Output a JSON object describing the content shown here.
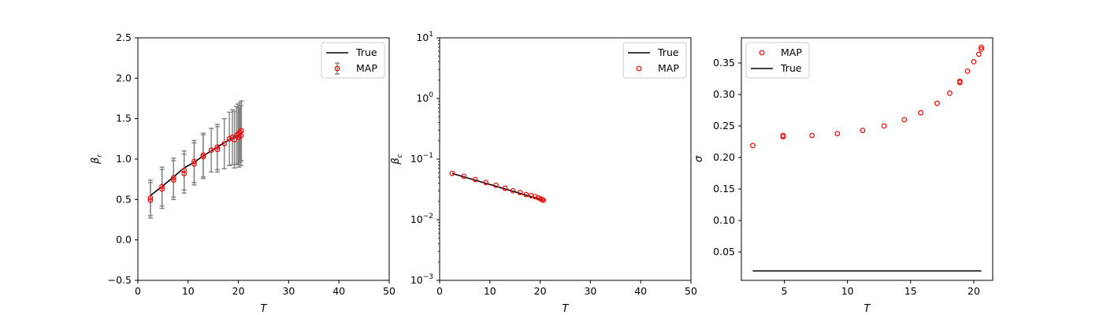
{
  "figure": {
    "background": "#ffffff"
  },
  "colors": {
    "true_line": "#000000",
    "map_marker": "#ff0000",
    "errorbar": "#808080",
    "legend_border": "#cccccc"
  },
  "chart_data": [
    {
      "type": "scatter",
      "name": "panel-beta-r",
      "xlabel": "T",
      "ylabel": "β",
      "ylabel_sub": "r",
      "xlim": [
        0,
        50
      ],
      "ylim": [
        -0.5,
        2.5
      ],
      "yscale": "linear",
      "xticks": [
        0,
        10,
        20,
        30,
        40,
        50
      ],
      "xtick_labels": [
        "0",
        "10",
        "20",
        "30",
        "40",
        "50"
      ],
      "yticks": [
        -0.5,
        0.0,
        0.5,
        1.0,
        1.5,
        2.0,
        2.5
      ],
      "ytick_labels": [
        "−0.5",
        "0.0",
        "0.5",
        "1.0",
        "1.5",
        "2.0",
        "2.5"
      ],
      "legend": {
        "placement": "upper-right",
        "entries": [
          "True",
          "MAP"
        ],
        "kinds": [
          "line",
          "errorbar"
        ]
      },
      "series": [
        {
          "name": "True",
          "kind": "line",
          "x": [
            2.5,
            4.8,
            7.1,
            9.2,
            11.2,
            13.0,
            14.6,
            16.0,
            17.2,
            18.2,
            19.0,
            19.6,
            20.1,
            20.4,
            20.6
          ],
          "y": [
            0.55,
            0.66,
            0.78,
            0.89,
            0.96,
            1.04,
            1.1,
            1.16,
            1.2,
            1.24,
            1.27,
            1.29,
            1.3,
            1.31,
            1.32
          ]
        },
        {
          "name": "MAP",
          "kind": "errorbar",
          "x": [
            2.5,
            2.5,
            4.8,
            4.8,
            7.1,
            7.1,
            9.2,
            9.2,
            11.2,
            11.2,
            13.0,
            13.0,
            14.6,
            15.8,
            15.8,
            17.2,
            18.2,
            18.8,
            19.2,
            19.6,
            19.9,
            20.1,
            20.3,
            20.5,
            20.6
          ],
          "y": [
            0.49,
            0.52,
            0.63,
            0.66,
            0.74,
            0.77,
            0.82,
            0.86,
            0.94,
            0.97,
            1.03,
            1.05,
            1.11,
            1.12,
            1.15,
            1.19,
            1.25,
            1.27,
            1.24,
            1.29,
            1.31,
            1.27,
            1.33,
            1.29,
            1.35
          ],
          "yerr": [
            0.22,
            0.22,
            0.24,
            0.24,
            0.24,
            0.24,
            0.24,
            0.24,
            0.26,
            0.26,
            0.27,
            0.27,
            0.27,
            0.28,
            0.28,
            0.31,
            0.33,
            0.34,
            0.35,
            0.36,
            0.37,
            0.37,
            0.37,
            0.37,
            0.37
          ]
        }
      ]
    },
    {
      "type": "scatter",
      "name": "panel-beta-c",
      "xlabel": "T",
      "ylabel": "β",
      "ylabel_sub": "c",
      "xlim": [
        0,
        50
      ],
      "ylim": [
        0.001,
        10
      ],
      "yscale": "log",
      "xticks": [
        0,
        10,
        20,
        30,
        40,
        50
      ],
      "xtick_labels": [
        "0",
        "10",
        "20",
        "30",
        "40",
        "50"
      ],
      "yticks": [
        0.001,
        0.01,
        0.1,
        1,
        10
      ],
      "ytick_base": "10",
      "ytick_exponents": [
        "−3",
        "−2",
        "−1",
        "0",
        "1"
      ],
      "legend": {
        "placement": "upper-right",
        "entries": [
          "True",
          "MAP"
        ],
        "kinds": [
          "line",
          "marker"
        ]
      },
      "series": [
        {
          "name": "True",
          "kind": "line",
          "x": [
            2.5,
            20.6
          ],
          "y": [
            0.058,
            0.021
          ]
        },
        {
          "name": "MAP",
          "kind": "marker",
          "x": [
            2.5,
            4.8,
            7.1,
            9.2,
            11.2,
            13.0,
            14.6,
            16.0,
            17.2,
            18.2,
            19.0,
            19.6,
            20.1,
            20.4,
            20.6
          ],
          "y": [
            0.058,
            0.052,
            0.046,
            0.041,
            0.037,
            0.033,
            0.03,
            0.028,
            0.026,
            0.025,
            0.024,
            0.023,
            0.022,
            0.0215,
            0.021
          ]
        }
      ]
    },
    {
      "type": "scatter",
      "name": "panel-sigma",
      "xlabel": "T",
      "ylabel": "σ",
      "xlim": [
        1.6,
        21.5
      ],
      "ylim": [
        0.005,
        0.39
      ],
      "yscale": "linear",
      "xticks": [
        5,
        10,
        15,
        20
      ],
      "xtick_labels": [
        "5",
        "10",
        "15",
        "20"
      ],
      "yticks": [
        0.05,
        0.1,
        0.15,
        0.2,
        0.25,
        0.3,
        0.35
      ],
      "ytick_labels": [
        "0.05",
        "0.10",
        "0.15",
        "0.20",
        "0.25",
        "0.30",
        "0.35"
      ],
      "legend": {
        "placement": "upper-left",
        "entries": [
          "MAP",
          "True"
        ],
        "kinds": [
          "marker",
          "line"
        ]
      },
      "series": [
        {
          "name": "MAP",
          "kind": "marker",
          "x": [
            2.5,
            4.9,
            4.9,
            7.2,
            9.2,
            11.2,
            12.9,
            14.5,
            15.8,
            17.1,
            18.1,
            18.9,
            18.9,
            19.5,
            20.0,
            20.4,
            20.6,
            20.6
          ],
          "y": [
            0.219,
            0.233,
            0.235,
            0.235,
            0.238,
            0.243,
            0.25,
            0.26,
            0.271,
            0.286,
            0.302,
            0.319,
            0.321,
            0.337,
            0.352,
            0.364,
            0.372,
            0.375
          ]
        },
        {
          "name": "True",
          "kind": "line",
          "x": [
            2.5,
            20.6
          ],
          "y": [
            0.02,
            0.02
          ]
        }
      ]
    }
  ]
}
